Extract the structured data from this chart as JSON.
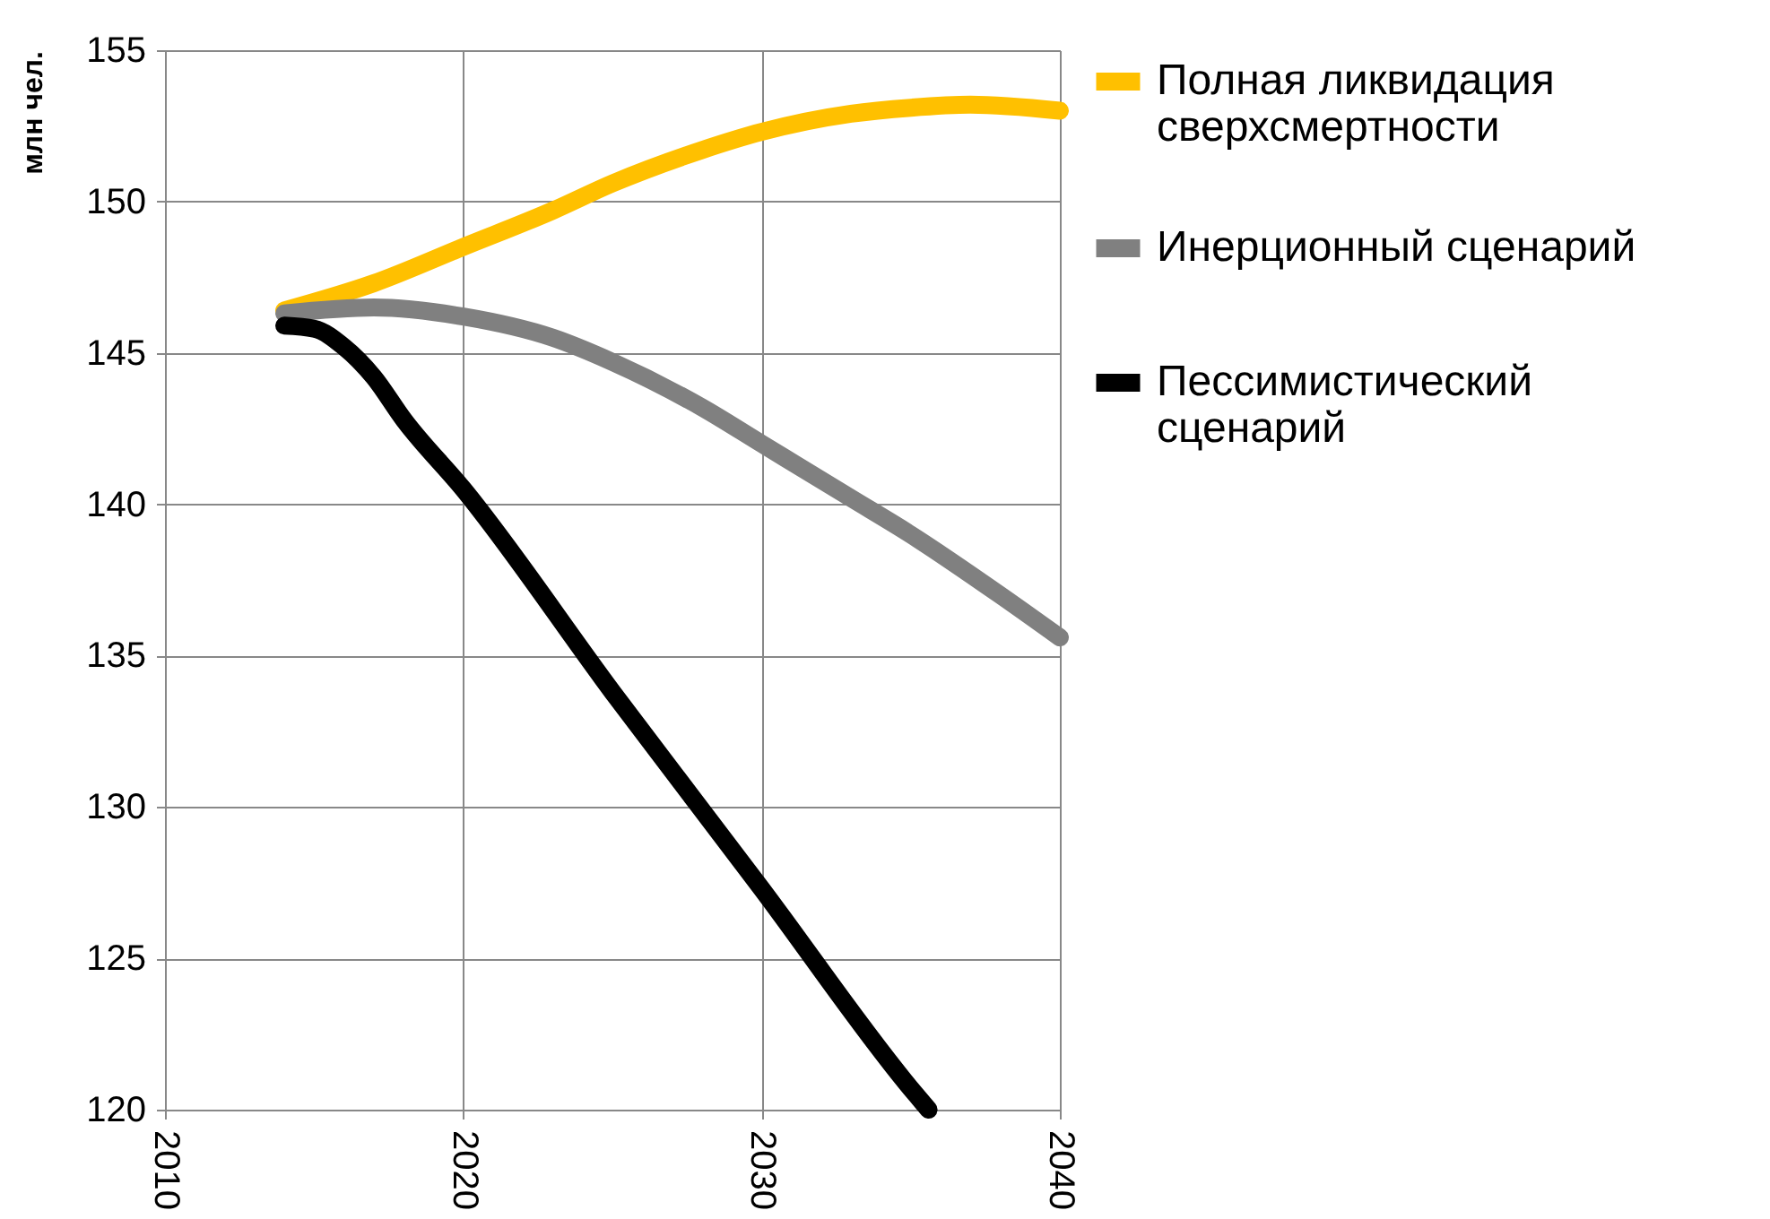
{
  "chart_data": {
    "type": "line",
    "ylabel": "млн чел.",
    "xlim": [
      2010,
      2040
    ],
    "xticks": [
      2010,
      2020,
      2030,
      2040
    ],
    "ylim": [
      120,
      155
    ],
    "yticks": [
      120,
      125,
      130,
      135,
      140,
      145,
      150,
      155
    ],
    "grid": true,
    "legend": "right",
    "line_style": "solid",
    "marker": "none",
    "series": [
      {
        "name": "Полная ликвидация сверхсмертности",
        "color": "#ffc000",
        "x": [
          2014,
          2017,
          2020,
          2023,
          2025,
          2028,
          2030,
          2033,
          2035,
          2037,
          2040
        ],
        "values": [
          146.4,
          147.3,
          148.5,
          149.7,
          150.6,
          151.7,
          152.3,
          152.9,
          153.1,
          153.2,
          153
        ]
      },
      {
        "name": "Инерционный сценарий",
        "color": "#808080",
        "x": [
          2014,
          2017,
          2020,
          2023,
          2025,
          2028,
          2030,
          2033,
          2035,
          2038,
          2040
        ],
        "values": [
          146.3,
          146.5,
          146.2,
          145.5,
          144.7,
          143.2,
          142,
          140.2,
          139,
          137,
          135.6
        ]
      },
      {
        "name": "Пессимистический сценарий",
        "color": "#000000",
        "x": [
          2014,
          2015,
          2016,
          2017,
          2018,
          2020,
          2025,
          2030,
          2035,
          2035.6
        ],
        "values": [
          145.9,
          145.8,
          145.2,
          144.2,
          142.8,
          140.5,
          133.8,
          127.3,
          120.7,
          120
        ]
      }
    ]
  }
}
